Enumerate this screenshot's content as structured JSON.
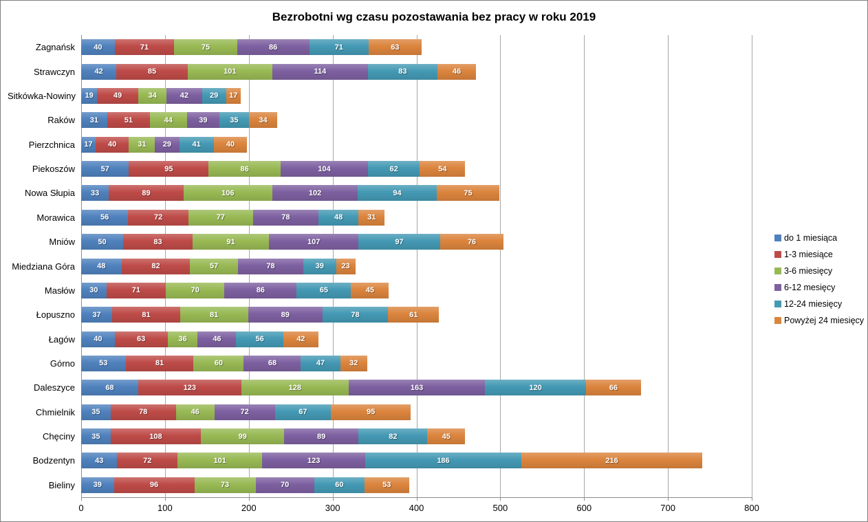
{
  "title": "Bezrobotni wg czasu pozostawania bez pracy w roku 2019",
  "chart_data": {
    "type": "bar",
    "orientation": "horizontal",
    "stacked": true,
    "title": "Bezrobotni wg czasu pozostawania bez pracy w roku 2019",
    "categories": [
      "Zagnańsk",
      "Strawczyn",
      "Sitkówka-Nowiny",
      "Raków",
      "Pierzchnica",
      "Piekoszów",
      "Nowa Słupia",
      "Morawica",
      "Mniów",
      "Miedziana Góra",
      "Masłów",
      "Łopuszno",
      "Łagów",
      "Górno",
      "Daleszyce",
      "Chmielnik",
      "Chęciny",
      "Bodzentyn",
      "Bieliny"
    ],
    "series": [
      {
        "name": "do 1 miesiąca",
        "color": "#4F81BD",
        "values": [
          40,
          42,
          19,
          31,
          17,
          57,
          33,
          56,
          50,
          48,
          30,
          37,
          40,
          53,
          68,
          35,
          35,
          43,
          39
        ]
      },
      {
        "name": "1-3 miesiące",
        "color": "#BE4B48",
        "values": [
          71,
          85,
          49,
          51,
          40,
          95,
          89,
          72,
          83,
          82,
          71,
          81,
          63,
          81,
          123,
          78,
          108,
          72,
          96
        ]
      },
      {
        "name": "3-6 miesięcy",
        "color": "#98B954",
        "values": [
          75,
          101,
          34,
          44,
          31,
          86,
          106,
          77,
          91,
          57,
          70,
          81,
          36,
          60,
          128,
          46,
          99,
          101,
          73
        ]
      },
      {
        "name": "6-12 mesięcy",
        "color": "#7D60A0",
        "values": [
          86,
          114,
          42,
          39,
          29,
          104,
          102,
          78,
          107,
          78,
          86,
          89,
          46,
          68,
          163,
          72,
          89,
          123,
          70
        ]
      },
      {
        "name": "12-24 miesięcy",
        "color": "#4499B4",
        "values": [
          71,
          83,
          29,
          35,
          41,
          62,
          94,
          48,
          97,
          39,
          65,
          78,
          56,
          47,
          120,
          67,
          82,
          186,
          60
        ]
      },
      {
        "name": "Powyżej 24 miesięcy",
        "color": "#DB843D",
        "values": [
          63,
          46,
          17,
          34,
          40,
          54,
          75,
          31,
          76,
          23,
          45,
          61,
          42,
          32,
          66,
          95,
          45,
          216,
          53
        ]
      }
    ],
    "xlabel": "",
    "ylabel": "",
    "xlim": [
      0,
      800
    ],
    "x_ticks": [
      0,
      100,
      200,
      300,
      400,
      500,
      600,
      700,
      800
    ],
    "grid": true,
    "legend_position": "right",
    "data_labels": true
  }
}
